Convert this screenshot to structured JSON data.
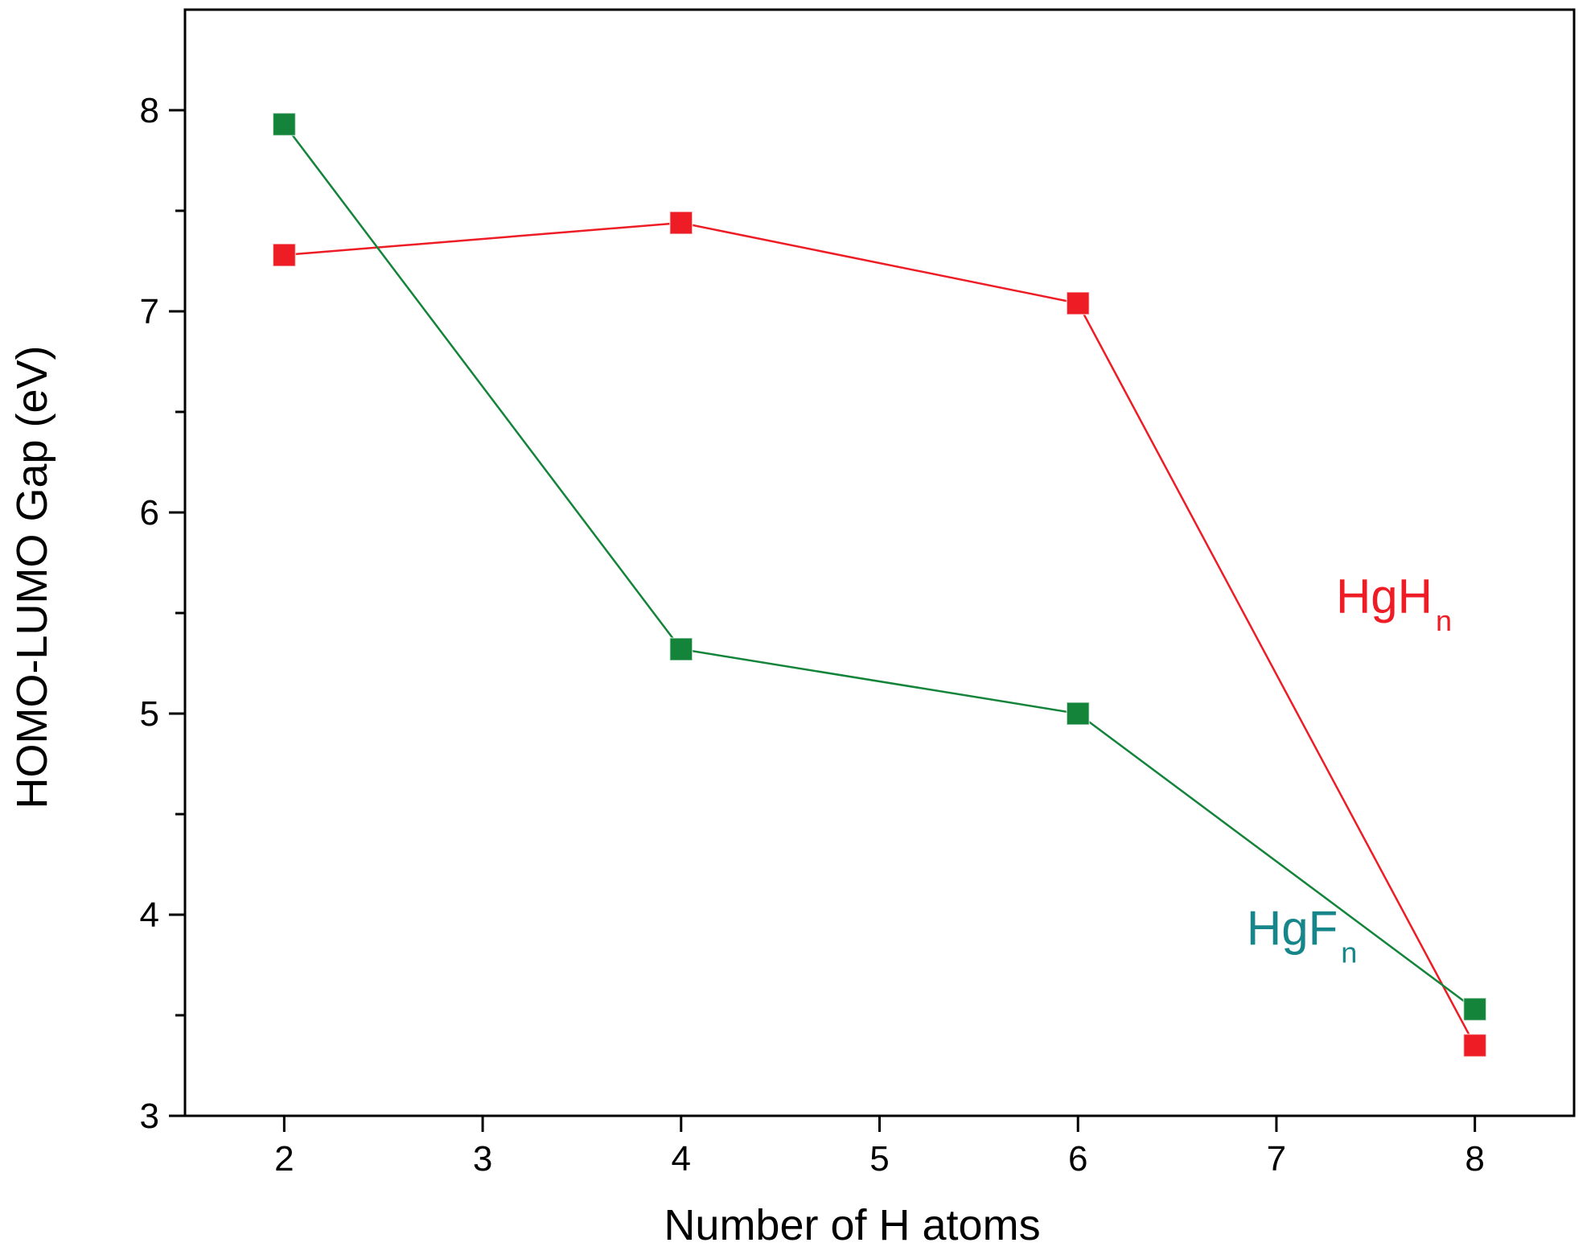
{
  "chart_data": {
    "type": "line",
    "title": "",
    "xlabel": "Number of H atoms",
    "ylabel": "HOMO-LUMO Gap (eV)",
    "xlim": [
      1.5,
      8.5
    ],
    "ylim": [
      3,
      8.5
    ],
    "x_ticks": [
      2,
      3,
      4,
      5,
      6,
      7,
      8
    ],
    "y_ticks": [
      3,
      4,
      5,
      6,
      7,
      8
    ],
    "y_minor_ticks": [
      3.5,
      4.5,
      5.5,
      6.5,
      7.5
    ],
    "grid": false,
    "legend": "none (inline labels)",
    "series": [
      {
        "name": "HgHn",
        "label_main": "HgH",
        "label_sub": "n",
        "label_position": {
          "x": 7.3,
          "y": 5.5
        },
        "color": "#ee1c25",
        "marker": "square",
        "x": [
          2,
          4,
          6,
          8
        ],
        "y": [
          7.28,
          7.44,
          7.04,
          3.35
        ]
      },
      {
        "name": "HgFn",
        "label_main": "HgF",
        "label_sub": "n",
        "label_position": {
          "x": 6.85,
          "y": 3.85
        },
        "color": "#13843a",
        "label_color": "#16868a",
        "marker": "square",
        "x": [
          2,
          4,
          6,
          8
        ],
        "y": [
          7.93,
          5.32,
          5.0,
          3.53
        ]
      }
    ]
  }
}
